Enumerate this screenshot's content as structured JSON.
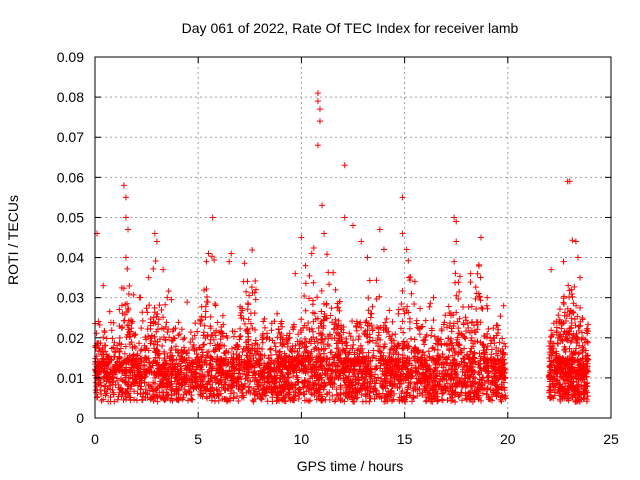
{
  "chart_data": {
    "type": "scatter",
    "title": "Day 061 of 2022, Rate Of TEC Index for receiver lamb",
    "xlabel": "GPS time / hours",
    "ylabel": "ROTI / TECUs",
    "xlim": [
      0,
      25
    ],
    "ylim": [
      0,
      0.09
    ],
    "x_ticks": [
      "0",
      "5",
      "10",
      "15",
      "20",
      "25"
    ],
    "y_ticks": [
      "0",
      "0.01",
      "0.02",
      "0.03",
      "0.04",
      "0.05",
      "0.06",
      "0.07",
      "0.08",
      "0.09"
    ],
    "grid": true,
    "marker": "+",
    "color": "#ff0000",
    "peaks": [
      {
        "x": 0.1,
        "y": 0.046
      },
      {
        "x": 0.4,
        "y": 0.033
      },
      {
        "x": 1.4,
        "y": 0.058
      },
      {
        "x": 1.5,
        "y": 0.055
      },
      {
        "x": 1.5,
        "y": 0.05
      },
      {
        "x": 1.6,
        "y": 0.047
      },
      {
        "x": 1.5,
        "y": 0.04
      },
      {
        "x": 2.2,
        "y": 0.03
      },
      {
        "x": 2.6,
        "y": 0.035
      },
      {
        "x": 2.9,
        "y": 0.046
      },
      {
        "x": 3.0,
        "y": 0.044
      },
      {
        "x": 3.3,
        "y": 0.037
      },
      {
        "x": 3.5,
        "y": 0.03
      },
      {
        "x": 5.4,
        "y": 0.039
      },
      {
        "x": 5.5,
        "y": 0.041
      },
      {
        "x": 5.7,
        "y": 0.05
      },
      {
        "x": 6.5,
        "y": 0.039
      },
      {
        "x": 6.6,
        "y": 0.041
      },
      {
        "x": 7.2,
        "y": 0.034
      },
      {
        "x": 7.8,
        "y": 0.032
      },
      {
        "x": 9.7,
        "y": 0.036
      },
      {
        "x": 10.0,
        "y": 0.045
      },
      {
        "x": 10.2,
        "y": 0.038
      },
      {
        "x": 10.5,
        "y": 0.041
      },
      {
        "x": 10.8,
        "y": 0.081
      },
      {
        "x": 10.8,
        "y": 0.079
      },
      {
        "x": 10.9,
        "y": 0.077
      },
      {
        "x": 10.9,
        "y": 0.074
      },
      {
        "x": 10.8,
        "y": 0.068
      },
      {
        "x": 11.0,
        "y": 0.053
      },
      {
        "x": 11.1,
        "y": 0.046
      },
      {
        "x": 12.1,
        "y": 0.063
      },
      {
        "x": 12.1,
        "y": 0.05
      },
      {
        "x": 12.5,
        "y": 0.048
      },
      {
        "x": 12.9,
        "y": 0.044
      },
      {
        "x": 13.2,
        "y": 0.04
      },
      {
        "x": 13.8,
        "y": 0.047
      },
      {
        "x": 14.0,
        "y": 0.042
      },
      {
        "x": 14.9,
        "y": 0.055
      },
      {
        "x": 14.9,
        "y": 0.046
      },
      {
        "x": 15.1,
        "y": 0.042
      },
      {
        "x": 15.5,
        "y": 0.034
      },
      {
        "x": 16.4,
        "y": 0.03
      },
      {
        "x": 17.4,
        "y": 0.05
      },
      {
        "x": 17.5,
        "y": 0.049
      },
      {
        "x": 17.5,
        "y": 0.044
      },
      {
        "x": 17.4,
        "y": 0.039
      },
      {
        "x": 18.2,
        "y": 0.036
      },
      {
        "x": 18.7,
        "y": 0.045
      },
      {
        "x": 19.0,
        "y": 0.03
      },
      {
        "x": 19.8,
        "y": 0.028
      },
      {
        "x": 22.1,
        "y": 0.037
      },
      {
        "x": 22.7,
        "y": 0.039
      },
      {
        "x": 22.9,
        "y": 0.059
      },
      {
        "x": 23.0,
        "y": 0.059
      },
      {
        "x": 23.3,
        "y": 0.044
      },
      {
        "x": 23.4,
        "y": 0.04
      },
      {
        "x": 23.5,
        "y": 0.035
      }
    ]
  }
}
